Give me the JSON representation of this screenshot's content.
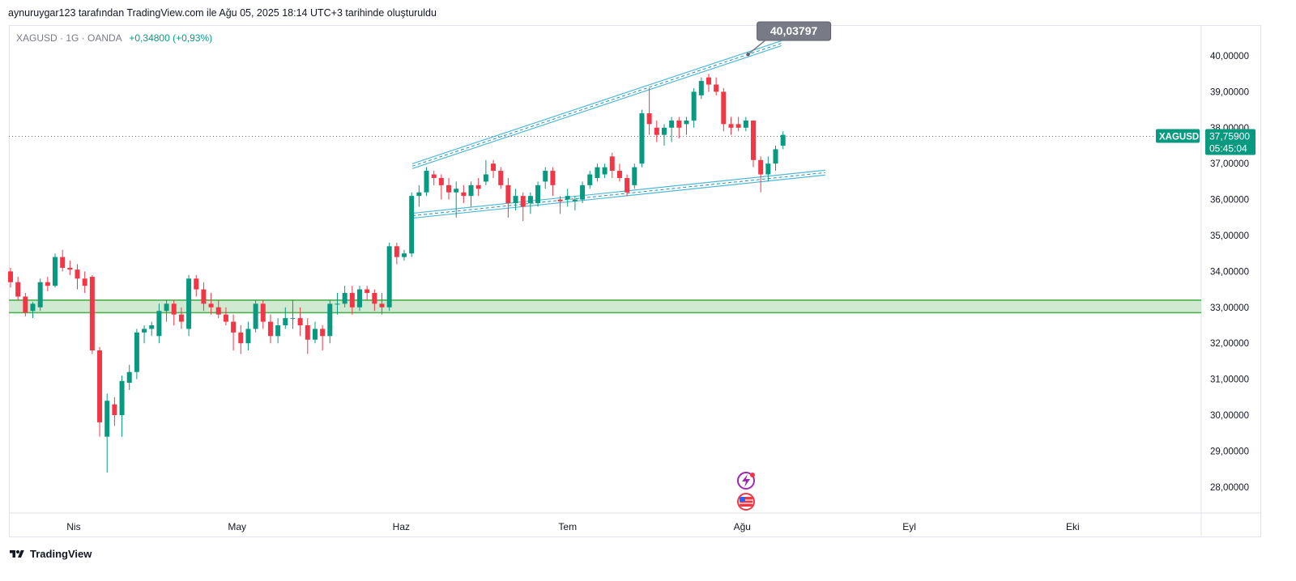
{
  "header": {
    "caption": "aynuruygar123 tarafından TradingView.com ile Ağu 05, 2025 18:14 UTC+3 tarihinde oluşturuldu"
  },
  "symbol": {
    "info": "XAGUSD · 1G · OANDA",
    "change": "+0,34800 (+0,93%)"
  },
  "price_label": {
    "ticker": "XAGUSD",
    "price": "37,75900",
    "countdown": "05:45:04"
  },
  "annotation": {
    "value": "40,03797"
  },
  "footer": {
    "brand": "TradingView"
  },
  "colors": {
    "up": "#089981",
    "down": "#f23645",
    "channel": "#4fb8d3",
    "zone_fill": "#c8e6c9",
    "zone_border": "#4caf50",
    "annotation_bg": "#787b86"
  },
  "chart_data": {
    "type": "candlestick",
    "symbol": "XAGUSD",
    "timeframe": "1G",
    "y_axis": {
      "range": [
        27.2,
        40.9
      ],
      "ticks": [
        {
          "value": 40,
          "label": "40,00000"
        },
        {
          "value": 39,
          "label": "39,00000"
        },
        {
          "value": 38,
          "label": "38,00000"
        },
        {
          "value": 37,
          "label": "37,00000"
        },
        {
          "value": 36,
          "label": "36,00000"
        },
        {
          "value": 35,
          "label": "35,00000"
        },
        {
          "value": 34,
          "label": "34,00000"
        },
        {
          "value": 33,
          "label": "33,00000"
        },
        {
          "value": 32,
          "label": "32,00000"
        },
        {
          "value": 31,
          "label": "31,00000"
        },
        {
          "value": 30,
          "label": "30,00000"
        },
        {
          "value": 29,
          "label": "29,00000"
        },
        {
          "value": 28,
          "label": "28,00000"
        }
      ]
    },
    "x_axis": {
      "ticks": [
        {
          "label": "Nis",
          "index": 8.5
        },
        {
          "label": "May",
          "index": 30.5
        },
        {
          "label": "Haz",
          "index": 52.6
        },
        {
          "label": "Tem",
          "index": 75
        },
        {
          "label": "Ağu",
          "index": 98.5
        },
        {
          "label": "Eyl",
          "index": 121
        },
        {
          "label": "Eki",
          "index": 143
        }
      ]
    },
    "candles": [
      [
        34.0,
        33.7,
        34.1,
        33.55
      ],
      [
        33.7,
        33.3,
        33.85,
        33.2
      ],
      [
        33.3,
        32.85,
        33.4,
        32.75
      ],
      [
        32.9,
        33.1,
        33.15,
        32.7
      ],
      [
        33.0,
        33.7,
        33.8,
        32.9
      ],
      [
        33.7,
        33.6,
        33.85,
        33.45
      ],
      [
        33.6,
        34.4,
        34.5,
        33.55
      ],
      [
        34.4,
        34.1,
        34.6,
        34.0
      ],
      [
        34.1,
        34.05,
        34.3,
        33.9
      ],
      [
        34.05,
        33.8,
        34.2,
        33.5
      ],
      [
        33.8,
        33.6,
        34.0,
        33.4
      ],
      [
        33.85,
        31.8,
        33.9,
        31.7
      ],
      [
        31.8,
        29.8,
        31.9,
        29.4
      ],
      [
        29.4,
        30.4,
        30.6,
        28.4
      ],
      [
        30.3,
        30.0,
        30.5,
        29.7
      ],
      [
        30.0,
        30.95,
        31.1,
        29.4
      ],
      [
        30.9,
        31.2,
        31.4,
        30.7
      ],
      [
        31.2,
        32.3,
        32.4,
        31.0
      ],
      [
        32.3,
        32.4,
        32.5,
        32.0
      ],
      [
        32.4,
        32.5,
        32.6,
        32.2
      ],
      [
        32.2,
        32.9,
        33.1,
        32.0
      ],
      [
        32.9,
        33.1,
        33.2,
        32.6
      ],
      [
        33.1,
        32.8,
        33.2,
        32.5
      ],
      [
        32.8,
        32.6,
        33.0,
        32.4
      ],
      [
        32.4,
        33.8,
        33.9,
        32.2
      ],
      [
        33.8,
        33.5,
        33.9,
        33.3
      ],
      [
        33.5,
        33.1,
        33.7,
        32.9
      ],
      [
        33.1,
        33.0,
        33.4,
        32.8
      ],
      [
        33.0,
        32.8,
        33.2,
        32.7
      ],
      [
        32.8,
        32.6,
        33.0,
        32.5
      ],
      [
        32.6,
        32.3,
        32.8,
        31.8
      ],
      [
        32.3,
        32.0,
        32.5,
        31.7
      ],
      [
        32.0,
        32.4,
        32.6,
        31.8
      ],
      [
        32.4,
        33.1,
        33.2,
        32.3
      ],
      [
        33.1,
        32.6,
        33.2,
        32.4
      ],
      [
        32.6,
        32.2,
        32.8,
        32.0
      ],
      [
        32.2,
        32.5,
        32.7,
        32.0
      ],
      [
        32.5,
        32.7,
        33.0,
        32.4
      ],
      [
        32.7,
        32.7,
        33.2,
        32.4
      ],
      [
        32.7,
        32.5,
        33.0,
        32.2
      ],
      [
        32.5,
        32.1,
        32.7,
        31.7
      ],
      [
        32.1,
        32.4,
        32.6,
        32.0
      ],
      [
        32.4,
        32.2,
        32.5,
        31.8
      ],
      [
        32.2,
        33.1,
        33.2,
        32.0
      ],
      [
        33.1,
        33.1,
        33.4,
        32.8
      ],
      [
        33.1,
        33.4,
        33.6,
        33.0
      ],
      [
        33.4,
        33.0,
        33.6,
        32.8
      ],
      [
        33.0,
        33.5,
        33.6,
        32.9
      ],
      [
        33.5,
        33.4,
        33.6,
        33.2
      ],
      [
        33.4,
        33.1,
        33.5,
        32.9
      ],
      [
        33.1,
        33.0,
        33.4,
        32.8
      ],
      [
        33.0,
        34.7,
        34.8,
        32.9
      ],
      [
        34.7,
        34.4,
        34.8,
        34.2
      ],
      [
        34.4,
        34.5,
        34.6,
        34.3
      ],
      [
        34.5,
        36.1,
        36.2,
        34.4
      ],
      [
        36.1,
        36.2,
        36.4,
        35.8
      ],
      [
        36.2,
        36.8,
        36.9,
        36.1
      ],
      [
        36.7,
        36.6,
        36.8,
        36.4
      ],
      [
        36.6,
        36.4,
        36.7,
        36.0
      ],
      [
        36.4,
        36.2,
        36.6,
        36.0
      ],
      [
        36.2,
        36.3,
        36.5,
        35.5
      ],
      [
        36.2,
        36.1,
        36.4,
        35.9
      ],
      [
        36.1,
        36.4,
        36.5,
        35.8
      ],
      [
        36.4,
        36.3,
        36.6,
        36.1
      ],
      [
        36.5,
        36.7,
        37.1,
        36.4
      ],
      [
        37.0,
        36.8,
        37.1,
        36.6
      ],
      [
        36.8,
        36.4,
        36.9,
        36.3
      ],
      [
        36.4,
        35.9,
        36.6,
        35.5
      ],
      [
        35.9,
        36.1,
        36.3,
        35.7
      ],
      [
        36.1,
        35.8,
        36.2,
        35.4
      ],
      [
        35.9,
        36.1,
        36.2,
        35.6
      ],
      [
        35.9,
        36.4,
        36.5,
        35.8
      ],
      [
        36.5,
        36.8,
        36.9,
        36.3
      ],
      [
        36.8,
        36.4,
        36.9,
        36.1
      ],
      [
        36.0,
        35.95,
        36.1,
        35.6
      ],
      [
        36.0,
        36.1,
        36.3,
        35.8
      ],
      [
        35.95,
        36.0,
        36.1,
        35.7
      ],
      [
        36.0,
        36.4,
        36.5,
        35.9
      ],
      [
        36.4,
        36.7,
        36.8,
        36.3
      ],
      [
        36.6,
        36.9,
        37.0,
        36.5
      ],
      [
        36.7,
        36.9,
        37.0,
        36.6
      ],
      [
        37.2,
        36.8,
        37.3,
        36.6
      ],
      [
        36.8,
        36.6,
        37.0,
        36.5
      ],
      [
        36.6,
        36.2,
        36.7,
        36.1
      ],
      [
        36.4,
        36.9,
        37.0,
        36.3
      ],
      [
        37.0,
        38.4,
        38.5,
        36.9
      ],
      [
        38.4,
        38.1,
        39.1,
        37.8
      ],
      [
        38.0,
        37.8,
        38.2,
        37.6
      ],
      [
        37.8,
        38.0,
        38.1,
        37.5
      ],
      [
        38.0,
        38.2,
        38.3,
        37.6
      ],
      [
        38.2,
        38.0,
        38.3,
        37.7
      ],
      [
        38.1,
        38.2,
        38.3,
        37.8
      ],
      [
        38.2,
        39.0,
        39.1,
        38.0
      ],
      [
        38.9,
        39.3,
        39.4,
        38.8
      ],
      [
        39.4,
        39.2,
        39.5,
        39.0
      ],
      [
        39.2,
        39.0,
        39.4,
        38.9
      ],
      [
        39.0,
        38.1,
        39.1,
        37.9
      ],
      [
        38.1,
        38.0,
        38.3,
        37.8
      ],
      [
        38.1,
        38.0,
        38.3,
        37.9
      ],
      [
        38.0,
        38.2,
        38.3,
        37.9
      ],
      [
        38.2,
        37.1,
        38.2,
        36.9
      ],
      [
        37.1,
        36.7,
        37.2,
        36.2
      ],
      [
        36.7,
        37.0,
        37.2,
        36.5
      ],
      [
        37.0,
        37.4,
        37.5,
        36.8
      ],
      [
        37.5,
        37.8,
        37.9,
        37.4
      ]
    ],
    "last_price": 37.759,
    "channel": {
      "upper": [
        {
          "x": 54.1,
          "y": 36.93
        },
        {
          "x": 99.3,
          "y": 40.04
        }
      ],
      "upper_extends_to": {
        "x": 103.8,
        "y": 40.35
      },
      "lower": [
        {
          "x": 54.1,
          "y": 35.55
        },
        {
          "x": 109.7,
          "y": 36.75
        }
      ],
      "annotated_value": 40.03797
    },
    "support_zone": {
      "low": 32.85,
      "high": 33.2
    }
  }
}
